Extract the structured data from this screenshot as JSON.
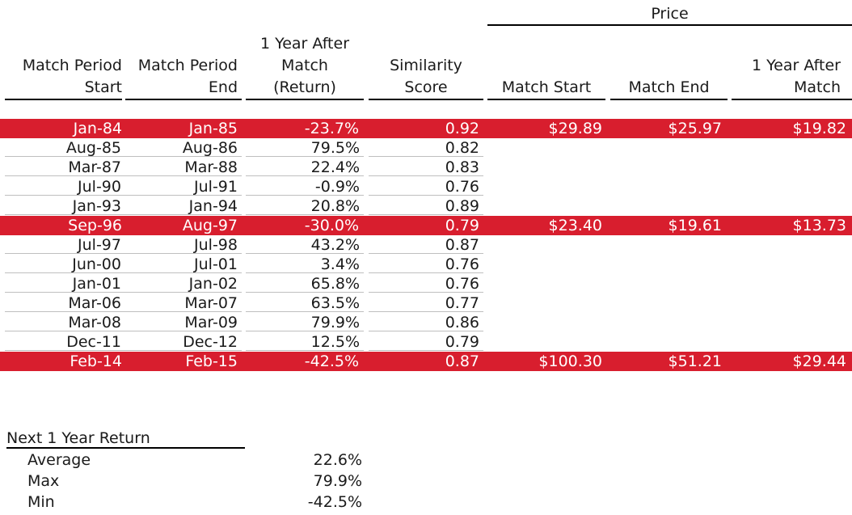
{
  "table": {
    "group_header": "Price",
    "columns": [
      "Match Period\nStart",
      "Match Period\nEnd",
      "1 Year After\nMatch\n(Return)",
      "Similarity\nScore",
      "Match Start",
      "Match End",
      "1 Year After\nMatch"
    ],
    "rows": [
      {
        "start": "Jan-84",
        "end": "Jan-85",
        "ret": "-23.7%",
        "score": "0.92",
        "p_start": "$29.89",
        "p_end": "$25.97",
        "p_after": "$19.82",
        "highlight": true
      },
      {
        "start": "Aug-85",
        "end": "Aug-86",
        "ret": "79.5%",
        "score": "0.82",
        "p_start": "",
        "p_end": "",
        "p_after": "",
        "highlight": false
      },
      {
        "start": "Mar-87",
        "end": "Mar-88",
        "ret": "22.4%",
        "score": "0.83",
        "p_start": "",
        "p_end": "",
        "p_after": "",
        "highlight": false
      },
      {
        "start": "Jul-90",
        "end": "Jul-91",
        "ret": "-0.9%",
        "score": "0.76",
        "p_start": "",
        "p_end": "",
        "p_after": "",
        "highlight": false
      },
      {
        "start": "Jan-93",
        "end": "Jan-94",
        "ret": "20.8%",
        "score": "0.89",
        "p_start": "",
        "p_end": "",
        "p_after": "",
        "highlight": false
      },
      {
        "start": "Sep-96",
        "end": "Aug-97",
        "ret": "-30.0%",
        "score": "0.79",
        "p_start": "$23.40",
        "p_end": "$19.61",
        "p_after": "$13.73",
        "highlight": true
      },
      {
        "start": "Jul-97",
        "end": "Jul-98",
        "ret": "43.2%",
        "score": "0.87",
        "p_start": "",
        "p_end": "",
        "p_after": "",
        "highlight": false
      },
      {
        "start": "Jun-00",
        "end": "Jul-01",
        "ret": "3.4%",
        "score": "0.76",
        "p_start": "",
        "p_end": "",
        "p_after": "",
        "highlight": false
      },
      {
        "start": "Jan-01",
        "end": "Jan-02",
        "ret": "65.8%",
        "score": "0.76",
        "p_start": "",
        "p_end": "",
        "p_after": "",
        "highlight": false
      },
      {
        "start": "Mar-06",
        "end": "Mar-07",
        "ret": "63.5%",
        "score": "0.77",
        "p_start": "",
        "p_end": "",
        "p_after": "",
        "highlight": false
      },
      {
        "start": "Mar-08",
        "end": "Mar-09",
        "ret": "79.9%",
        "score": "0.86",
        "p_start": "",
        "p_end": "",
        "p_after": "",
        "highlight": false
      },
      {
        "start": "Dec-11",
        "end": "Dec-12",
        "ret": "12.5%",
        "score": "0.79",
        "p_start": "",
        "p_end": "",
        "p_after": "",
        "highlight": false
      },
      {
        "start": "Feb-14",
        "end": "Feb-15",
        "ret": "-42.5%",
        "score": "0.87",
        "p_start": "$100.30",
        "p_end": "$51.21",
        "p_after": "$29.44",
        "highlight": true
      }
    ]
  },
  "summary": {
    "title": "Next 1 Year Return",
    "rows": [
      {
        "label": "Average",
        "value": "22.6%"
      },
      {
        "label": "Max",
        "value": "79.9%"
      },
      {
        "label": "Min",
        "value": "-42.5%"
      }
    ]
  },
  "colors": {
    "highlight": "#d81e2e",
    "highlight_text": "#ffffff",
    "grid": "#bfbfbf"
  }
}
